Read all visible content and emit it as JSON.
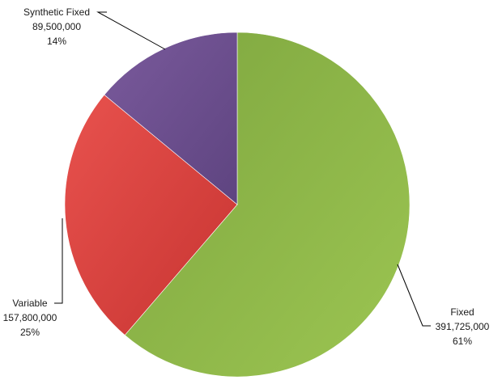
{
  "chart_data": {
    "type": "pie",
    "title": "",
    "start_angle_deg": 0,
    "direction": "clockwise",
    "slices": [
      {
        "label": "Fixed",
        "value": 391725000,
        "value_label": "391,725,000",
        "percent_label": "61%",
        "color": "#8FBC4A"
      },
      {
        "label": "Variable",
        "value": 157800000,
        "value_label": "157,800,000",
        "percent_label": "25%",
        "color": "#D93F3C"
      },
      {
        "label": "Synthetic Fixed",
        "value": 89500000,
        "value_label": "89,500,000",
        "percent_label": "14%",
        "color": "#6C4E8E"
      }
    ],
    "legend": "none",
    "data_labels": "outside-with-leader-lines"
  }
}
